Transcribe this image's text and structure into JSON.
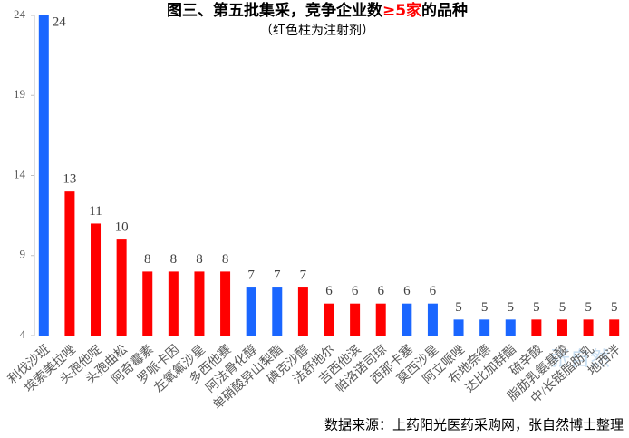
{
  "chart_data": {
    "type": "bar",
    "title": [
      "图三、第五批集采，竞争企业数",
      "≥5家",
      "的品种"
    ],
    "subtitle": "（红色柱为注射剂）",
    "source": "数据来源：上药阳光医药采购网，张自然博士整理",
    "watermark": "张自然",
    "categories": [
      "利伐沙班",
      "埃索美拉唑",
      "头孢他啶",
      "头孢曲松",
      "阿奇霉素",
      "罗哌卡因",
      "左氧氟沙星",
      "多西他赛",
      "阿法骨化醇",
      "单硝酸异山梨酯",
      "碘克沙醇",
      "法舒地尔",
      "吉西他滨",
      "帕洛诺司琼",
      "西那卡塞",
      "莫西沙星",
      "阿立哌唑",
      "布地奈德",
      "达比加群酯",
      "硫辛酸",
      "脂肪乳氨基酸",
      "中/长链脂肪乳",
      "地西泮"
    ],
    "values": [
      24,
      13,
      11,
      10,
      8,
      8,
      8,
      8,
      7,
      7,
      7,
      6,
      6,
      6,
      6,
      6,
      5,
      5,
      5,
      5,
      5,
      5,
      5
    ],
    "colors": [
      "#1a66ff",
      "#ff0000",
      "#ff0000",
      "#ff0000",
      "#ff0000",
      "#ff0000",
      "#ff0000",
      "#ff0000",
      "#1a66ff",
      "#1a66ff",
      "#ff0000",
      "#ff0000",
      "#ff0000",
      "#ff0000",
      "#1a66ff",
      "#1a66ff",
      "#1a66ff",
      "#1a66ff",
      "#1a66ff",
      "#ff0000",
      "#ff0000",
      "#ff0000",
      "#ff0000"
    ],
    "ylim": [
      4,
      24
    ],
    "yticks": [
      4,
      9,
      14,
      19,
      24
    ],
    "grid": false
  }
}
